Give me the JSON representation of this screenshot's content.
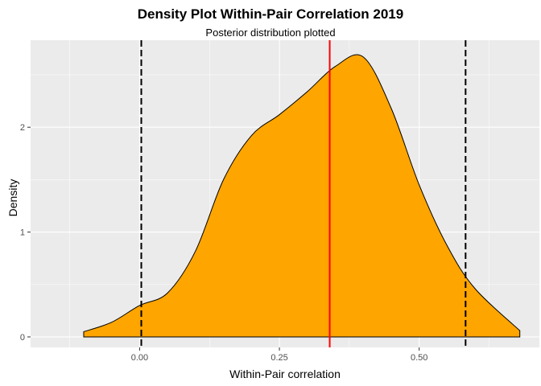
{
  "chart_data": {
    "type": "area",
    "title": "Density Plot Within-Pair Correlation 2019",
    "subtitle": "Posterior distribution plotted",
    "xlabel": "Within-Pair correlation",
    "ylabel": "Density",
    "xlim": [
      -0.195,
      0.715
    ],
    "ylim": [
      -0.1,
      2.83
    ],
    "x_ticks": [
      0.0,
      0.25,
      0.5
    ],
    "x_tick_labels": [
      "0.00",
      "0.25",
      "0.50"
    ],
    "y_ticks": [
      0,
      1,
      2
    ],
    "y_tick_labels": [
      "0",
      "1",
      "2"
    ],
    "grid": true,
    "fill_color": "#FFA500",
    "density": {
      "x": [
        -0.1,
        -0.05,
        0.0,
        0.05,
        0.1,
        0.15,
        0.2,
        0.25,
        0.3,
        0.35,
        0.4,
        0.45,
        0.5,
        0.55,
        0.6,
        0.68
      ],
      "y": [
        0.05,
        0.14,
        0.3,
        0.42,
        0.82,
        1.5,
        1.92,
        2.12,
        2.34,
        2.58,
        2.67,
        2.18,
        1.45,
        0.87,
        0.46,
        0.06
      ]
    },
    "vlines": [
      {
        "x": 0.003,
        "style": "dashed",
        "color": "#000000"
      },
      {
        "x": 0.34,
        "style": "solid",
        "color": "#FF0000"
      },
      {
        "x": 0.583,
        "style": "dashed",
        "color": "#000000"
      }
    ]
  }
}
